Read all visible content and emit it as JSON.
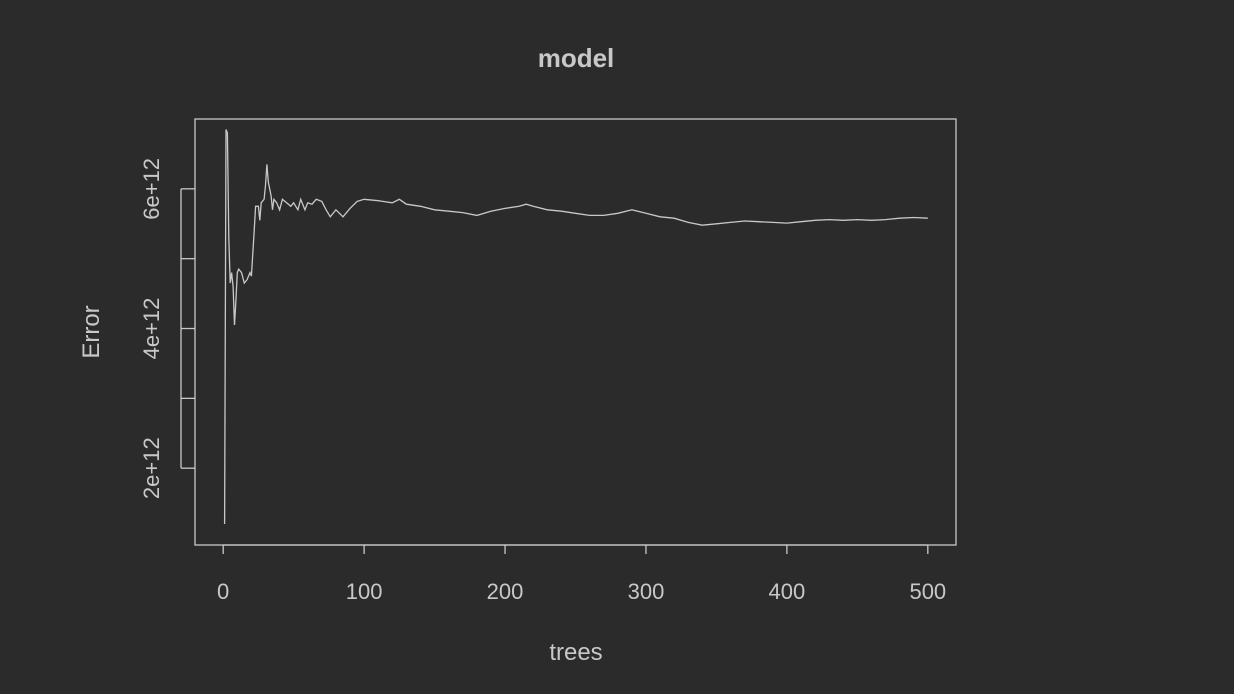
{
  "chart_data": {
    "type": "line",
    "title": "model",
    "xlabel": "trees",
    "ylabel": "Error",
    "xlim": [
      -20,
      520
    ],
    "ylim": [
      900000000000,
      7000000000000
    ],
    "x_ticks": [
      0,
      100,
      200,
      300,
      400,
      500
    ],
    "x_tick_labels": [
      "0",
      "100",
      "200",
      "300",
      "400",
      "500"
    ],
    "y_ticks": [
      2000000000000,
      3000000000000,
      4000000000000,
      5000000000000,
      6000000000000
    ],
    "y_tick_labels": [
      "2e+12",
      "",
      "4e+12",
      "",
      "6e+12"
    ],
    "grid": false,
    "series": [
      {
        "values": [
          [
            1,
            1200000000000
          ],
          [
            2,
            6850000000000
          ],
          [
            3,
            6800000000000
          ],
          [
            4,
            5300000000000
          ],
          [
            5,
            4650000000000
          ],
          [
            6,
            4800000000000
          ],
          [
            7,
            4600000000000
          ],
          [
            8,
            4050000000000
          ],
          [
            9,
            4400000000000
          ],
          [
            10,
            4800000000000
          ],
          [
            11,
            4850000000000
          ],
          [
            13,
            4800000000000
          ],
          [
            15,
            4650000000000
          ],
          [
            17,
            4700000000000
          ],
          [
            19,
            4800000000000
          ],
          [
            20,
            4750000000000
          ],
          [
            22,
            5400000000000
          ],
          [
            23,
            5750000000000
          ],
          [
            25,
            5750000000000
          ],
          [
            26,
            5550000000000
          ],
          [
            27,
            5800000000000
          ],
          [
            29,
            5850000000000
          ],
          [
            30,
            6050000000000
          ],
          [
            31,
            6350000000000
          ],
          [
            32,
            6100000000000
          ],
          [
            34,
            5900000000000
          ],
          [
            35,
            5700000000000
          ],
          [
            36,
            5850000000000
          ],
          [
            38,
            5800000000000
          ],
          [
            40,
            5700000000000
          ],
          [
            42,
            5850000000000
          ],
          [
            45,
            5800000000000
          ],
          [
            48,
            5750000000000
          ],
          [
            50,
            5800000000000
          ],
          [
            53,
            5700000000000
          ],
          [
            55,
            5850000000000
          ],
          [
            58,
            5700000000000
          ],
          [
            60,
            5800000000000
          ],
          [
            63,
            5780000000000
          ],
          [
            66,
            5850000000000
          ],
          [
            70,
            5820000000000
          ],
          [
            73,
            5700000000000
          ],
          [
            76,
            5600000000000
          ],
          [
            80,
            5700000000000
          ],
          [
            85,
            5600000000000
          ],
          [
            90,
            5720000000000
          ],
          [
            95,
            5820000000000
          ],
          [
            100,
            5850000000000
          ],
          [
            110,
            5830000000000
          ],
          [
            120,
            5800000000000
          ],
          [
            125,
            5850000000000
          ],
          [
            130,
            5780000000000
          ],
          [
            140,
            5750000000000
          ],
          [
            150,
            5700000000000
          ],
          [
            160,
            5680000000000
          ],
          [
            170,
            5660000000000
          ],
          [
            180,
            5620000000000
          ],
          [
            190,
            5680000000000
          ],
          [
            200,
            5720000000000
          ],
          [
            210,
            5750000000000
          ],
          [
            215,
            5780000000000
          ],
          [
            220,
            5750000000000
          ],
          [
            230,
            5700000000000
          ],
          [
            240,
            5680000000000
          ],
          [
            250,
            5650000000000
          ],
          [
            260,
            5620000000000
          ],
          [
            270,
            5620000000000
          ],
          [
            280,
            5650000000000
          ],
          [
            290,
            5700000000000
          ],
          [
            300,
            5650000000000
          ],
          [
            310,
            5600000000000
          ],
          [
            320,
            5580000000000
          ],
          [
            330,
            5520000000000
          ],
          [
            340,
            5480000000000
          ],
          [
            350,
            5500000000000
          ],
          [
            360,
            5520000000000
          ],
          [
            370,
            5540000000000
          ],
          [
            380,
            5530000000000
          ],
          [
            390,
            5520000000000
          ],
          [
            400,
            5510000000000
          ],
          [
            410,
            5530000000000
          ],
          [
            420,
            5550000000000
          ],
          [
            430,
            5560000000000
          ],
          [
            440,
            5550000000000
          ],
          [
            450,
            5560000000000
          ],
          [
            460,
            5550000000000
          ],
          [
            470,
            5560000000000
          ],
          [
            480,
            5580000000000
          ],
          [
            490,
            5590000000000
          ],
          [
            500,
            5580000000000
          ]
        ]
      }
    ]
  }
}
